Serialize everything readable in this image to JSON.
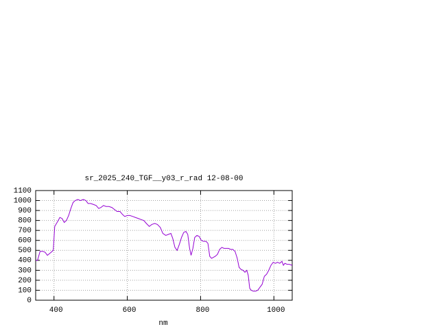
{
  "chart_data": {
    "type": "line",
    "title": "sr_2025_240_TGF__y03_r_rad 12-08-00",
    "x_label": "nm",
    "x": [
      350,
      355,
      362,
      370,
      376,
      382,
      392,
      398,
      402,
      410,
      416,
      422,
      428,
      434,
      440,
      446,
      452,
      458,
      465,
      472,
      480,
      487,
      493,
      500,
      508,
      515,
      522,
      528,
      535,
      542,
      550,
      558,
      565,
      572,
      580,
      587,
      593,
      600,
      607,
      615,
      622,
      630,
      637,
      645,
      652,
      660,
      667,
      675,
      682,
      690,
      697,
      705,
      712,
      719,
      724,
      730,
      736,
      742,
      748,
      754,
      760,
      765,
      770,
      774,
      779,
      784,
      790,
      796,
      802,
      808,
      815,
      820,
      825,
      830,
      835,
      840,
      846,
      852,
      858,
      864,
      870,
      876,
      882,
      888,
      894,
      900,
      905,
      910,
      916,
      921,
      926,
      930,
      934,
      938,
      944,
      950,
      956,
      962,
      968,
      974,
      980,
      986,
      992,
      998,
      1004,
      1010,
      1016,
      1022,
      1026,
      1030,
      1036,
      1042,
      1050
    ],
    "series": [
      {
        "name": "sr_2025_240_TGF__y03_r_rad",
        "color": "#9400d3",
        "values": [
          400,
          400,
          490,
          490,
          480,
          450,
          480,
          500,
          740,
          790,
          830,
          820,
          780,
          800,
          850,
          920,
          980,
          1000,
          1010,
          1000,
          1010,
          1000,
          970,
          970,
          960,
          950,
          920,
          930,
          950,
          940,
          940,
          930,
          910,
          890,
          890,
          860,
          840,
          850,
          850,
          840,
          830,
          820,
          810,
          800,
          770,
          740,
          760,
          770,
          760,
          730,
          670,
          650,
          660,
          670,
          620,
          530,
          500,
          560,
          630,
          680,
          690,
          660,
          520,
          450,
          520,
          630,
          650,
          640,
          600,
          590,
          590,
          570,
          440,
          420,
          430,
          440,
          460,
          510,
          530,
          520,
          520,
          520,
          510,
          510,
          490,
          420,
          330,
          310,
          300,
          280,
          300,
          250,
          120,
          100,
          90,
          90,
          100,
          130,
          160,
          240,
          260,
          300,
          350,
          380,
          370,
          380,
          370,
          390,
          350,
          370,
          360,
          360,
          350
        ]
      }
    ],
    "xlim": [
      350,
      1050
    ],
    "ylim": [
      0,
      1100
    ],
    "xticks": [
      400,
      600,
      800,
      1000
    ],
    "yticks": [
      0,
      100,
      200,
      300,
      400,
      500,
      600,
      700,
      800,
      900,
      1000,
      1100
    ],
    "grid": true
  }
}
